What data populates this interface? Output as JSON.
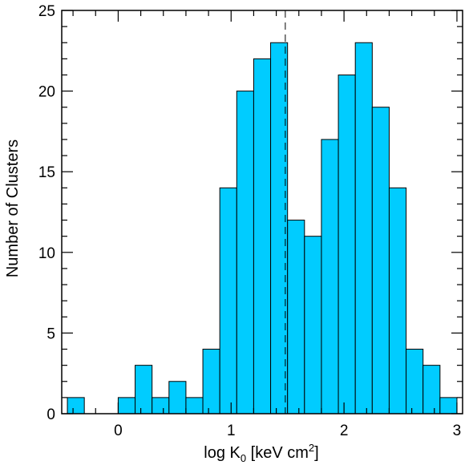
{
  "chart_data": {
    "type": "bar",
    "title": "",
    "xlabel": {
      "prefix": "log K",
      "subscript": "0",
      "middle": " [keV cm",
      "superscript": "2",
      "suffix": "]"
    },
    "ylabel": "Number of Clusters",
    "xlim": [
      -0.5,
      3.05
    ],
    "ylim": [
      0,
      25
    ],
    "xticks": [
      "0",
      "1",
      "2",
      "3"
    ],
    "yticks": [
      "0",
      "5",
      "10",
      "15",
      "20",
      "25"
    ],
    "bin_width": 0.15,
    "bins": [
      {
        "start": -0.45,
        "value": 1
      },
      {
        "start": -0.3,
        "value": 0
      },
      {
        "start": -0.15,
        "value": 0
      },
      {
        "start": 0.0,
        "value": 1
      },
      {
        "start": 0.15,
        "value": 3
      },
      {
        "start": 0.3,
        "value": 1
      },
      {
        "start": 0.45,
        "value": 2
      },
      {
        "start": 0.6,
        "value": 1
      },
      {
        "start": 0.75,
        "value": 4
      },
      {
        "start": 0.9,
        "value": 14
      },
      {
        "start": 1.05,
        "value": 20
      },
      {
        "start": 1.2,
        "value": 22
      },
      {
        "start": 1.35,
        "value": 23
      },
      {
        "start": 1.5,
        "value": 12
      },
      {
        "start": 1.65,
        "value": 11
      },
      {
        "start": 1.8,
        "value": 17
      },
      {
        "start": 1.95,
        "value": 21
      },
      {
        "start": 2.1,
        "value": 23
      },
      {
        "start": 2.25,
        "value": 19
      },
      {
        "start": 2.4,
        "value": 14
      },
      {
        "start": 2.55,
        "value": 4
      },
      {
        "start": 2.7,
        "value": 3
      },
      {
        "start": 2.85,
        "value": 1
      }
    ],
    "reference_line_x": 1.48,
    "bar_color": "#00ccff",
    "bar_edge_color": "#000000",
    "grid": false,
    "legend": "none"
  }
}
